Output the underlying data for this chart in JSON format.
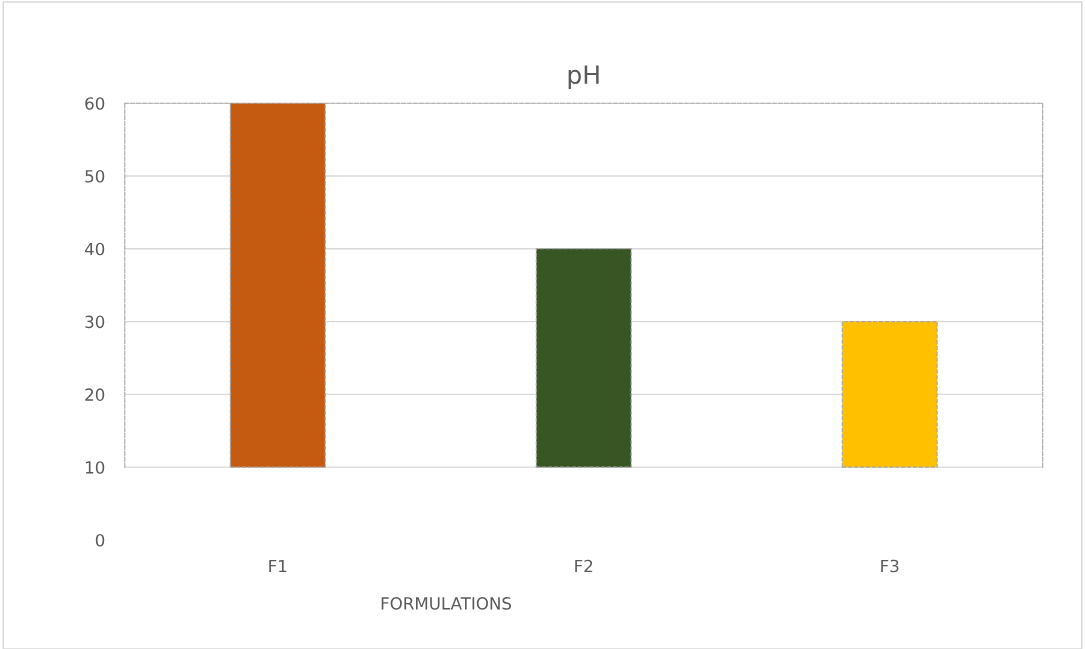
{
  "chart_data": {
    "type": "bar",
    "title": "pH",
    "xlabel": "FORMULATIONS",
    "categories": [
      "F1",
      "F2",
      "F3"
    ],
    "base": [
      10,
      10,
      10
    ],
    "values": [
      50,
      30,
      20
    ],
    "colors": [
      "#c55a11",
      "#375623",
      "#ffc000"
    ],
    "ylim": [
      0,
      60
    ],
    "yticks": [
      0,
      10,
      20,
      30,
      40,
      50,
      60
    ],
    "grid": "y"
  }
}
